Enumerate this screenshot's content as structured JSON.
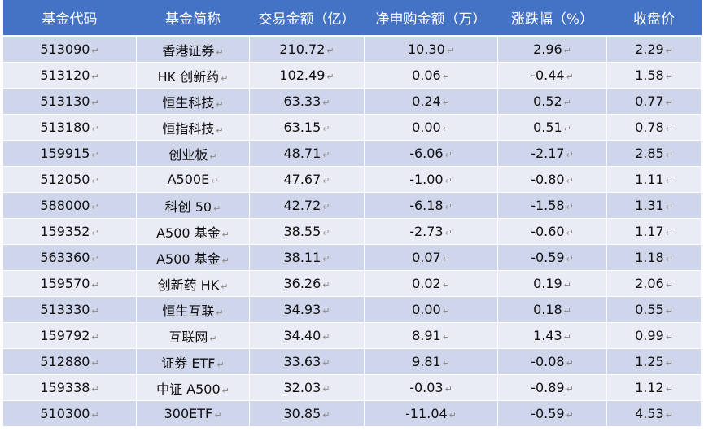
{
  "table": {
    "headers": [
      "基金代码",
      "基金简称",
      "交易金额（亿）",
      "净申购金额（万）",
      "涨跌幅（%）",
      "收盘价"
    ],
    "para_mark": "↵",
    "rows": [
      [
        "513090",
        "香港证券",
        "210.72",
        "10.30",
        "2.96",
        "2.29"
      ],
      [
        "513120",
        "HK 创新药",
        "102.49",
        "0.06",
        "-0.44",
        "1.58"
      ],
      [
        "513130",
        "恒生科技",
        "63.33",
        "0.24",
        "0.52",
        "0.77"
      ],
      [
        "513180",
        "恒指科技",
        "63.15",
        "0.00",
        "0.51",
        "0.78"
      ],
      [
        "159915",
        "创业板",
        "48.71",
        "-6.06",
        "-2.17",
        "2.85"
      ],
      [
        "512050",
        "A500E",
        "47.67",
        "-1.00",
        "-0.80",
        "1.11"
      ],
      [
        "588000",
        "科创 50",
        "42.72",
        "-6.18",
        "-1.58",
        "1.31"
      ],
      [
        "159352",
        "A500 基金",
        "38.55",
        "-2.73",
        "-0.60",
        "1.17"
      ],
      [
        "563360",
        "A500 基金",
        "38.11",
        "0.07",
        "-0.59",
        "1.18"
      ],
      [
        "159570",
        "创新药 HK",
        "36.26",
        "0.02",
        "0.19",
        "2.06"
      ],
      [
        "513330",
        "恒生互联",
        "34.93",
        "0.00",
        "0.18",
        "0.55"
      ],
      [
        "159792",
        "互联网",
        "34.40",
        "8.91",
        "1.43",
        "0.99"
      ],
      [
        "512880",
        "证券 ETF",
        "33.63",
        "9.81",
        "-0.08",
        "1.25"
      ],
      [
        "159338",
        "中证 A500",
        "32.03",
        "-0.03",
        "-0.89",
        "1.12"
      ],
      [
        "510300",
        "300ETF",
        "30.85",
        "-11.04",
        "-0.59",
        "4.53"
      ]
    ]
  }
}
